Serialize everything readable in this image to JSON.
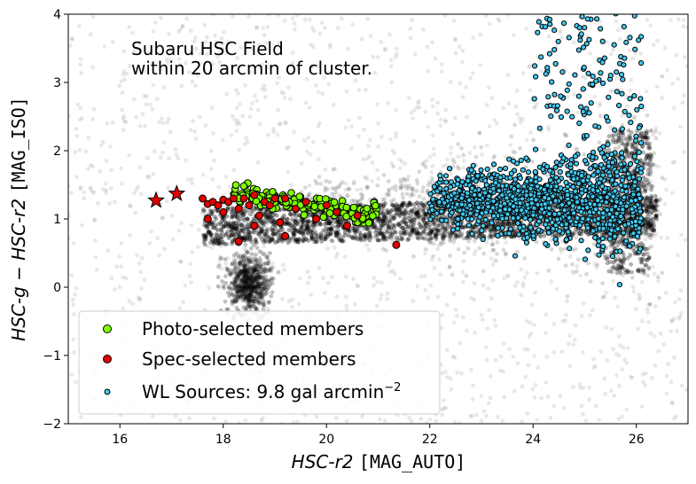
{
  "chart_data": {
    "type": "scatter",
    "xlim": [
      15,
      27
    ],
    "ylim": [
      -2,
      4
    ],
    "xticks": [
      "16",
      "18",
      "20",
      "22",
      "24",
      "26"
    ],
    "yticks": [
      "−2",
      "−1",
      "0",
      "1",
      "2",
      "3",
      "4"
    ],
    "xlabel": {
      "italic": "HSC-r2",
      "plain": " ",
      "mono": "[MAG_AUTO]"
    },
    "ylabel": {
      "italic": "HSC-g − HSC-r2",
      "plain": " ",
      "mono": "[MAG_ISO]"
    },
    "annotation": [
      "Subaru HSC Field",
      "within 20 arcmin of cluster."
    ],
    "legend": {
      "placement": "lower-left",
      "entries": [
        {
          "label": "Photo-selected members",
          "color": "#7fff00"
        },
        {
          "label": "Spec-selected members",
          "color": "#e00000"
        },
        {
          "label": "WL Sources: 9.8 gal arcmin",
          "sup": "−2",
          "color": "#40c8f0"
        }
      ]
    },
    "series": [
      {
        "name": "Photo-selected members",
        "color": "#7fff00",
        "x_range": [
          18.2,
          21.0
        ],
        "y_range": [
          0.85,
          1.45
        ]
      },
      {
        "name": "Spec-selected members",
        "color": "#e00000",
        "points": [
          [
            17.6,
            1.3
          ],
          [
            17.7,
            1.22
          ],
          [
            17.8,
            1.25
          ],
          [
            17.9,
            1.2
          ],
          [
            18.0,
            1.28
          ],
          [
            18.1,
            1.25
          ],
          [
            18.2,
            1.3
          ],
          [
            18.3,
            1.15
          ],
          [
            18.4,
            1.3
          ],
          [
            18.5,
            1.2
          ],
          [
            18.6,
            1.35
          ],
          [
            18.7,
            1.05
          ],
          [
            18.8,
            1.25
          ],
          [
            18.9,
            1.2
          ],
          [
            19.0,
            1.3
          ],
          [
            19.1,
            0.95
          ],
          [
            19.2,
            1.3
          ],
          [
            19.4,
            1.15
          ],
          [
            19.6,
            1.25
          ],
          [
            19.8,
            1.0
          ],
          [
            20.0,
            1.2
          ],
          [
            20.2,
            1.1
          ],
          [
            20.4,
            0.9
          ],
          [
            20.6,
            1.05
          ],
          [
            18.3,
            0.67
          ],
          [
            19.2,
            0.75
          ],
          [
            21.35,
            0.62
          ],
          [
            17.7,
            1.0
          ],
          [
            18.0,
            1.1
          ],
          [
            18.6,
            0.9
          ]
        ],
        "stars": [
          [
            16.7,
            1.27
          ],
          [
            17.1,
            1.37
          ]
        ]
      },
      {
        "name": "WL Sources: 9.8 gal arcmin−2",
        "color": "#40c8f0",
        "x_range": [
          22.0,
          26.2
        ],
        "y_range": [
          -0.4,
          4.0
        ]
      },
      {
        "name": "",
        "color": "#000000",
        "x_range": [
          15,
          27
        ],
        "y_range": [
          -2,
          4
        ]
      }
    ]
  }
}
